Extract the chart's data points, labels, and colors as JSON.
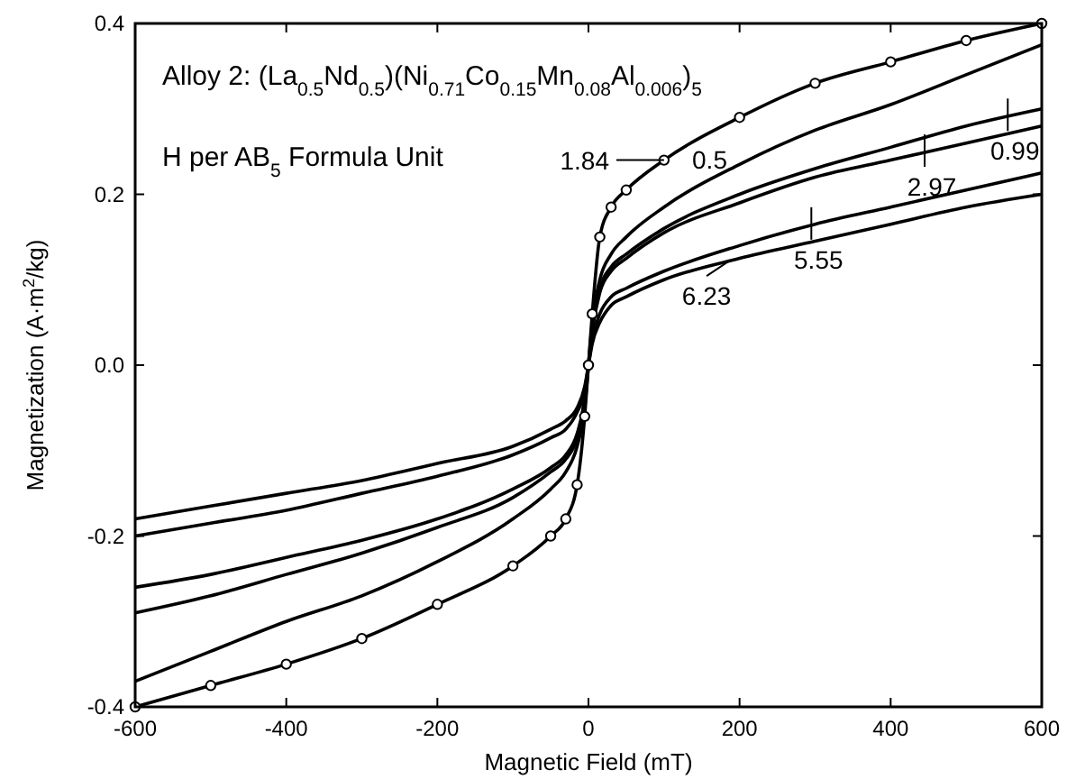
{
  "chart_data": {
    "type": "line",
    "title": "Alloy 2: (La$_{0.5}$Nd$_{0.5}$)(Ni$_{0.71}$Co$_{0.15}$Mn$_{0.08}$Al$_{0.006}$)$_{5}$",
    "legend_title": "H per AB$_{5}$ Formula Unit",
    "xlabel": "Magnetic Field (mT)",
    "ylabel": "Magnetization (A·m$^{2}$/kg)",
    "x": [
      -600,
      -500,
      -400,
      -300,
      -200,
      -100,
      -50,
      -30,
      -15,
      -5,
      0,
      5,
      15,
      30,
      50,
      100,
      200,
      300,
      400,
      500,
      600
    ],
    "xlim": [
      -600,
      600
    ],
    "xticks": [
      -600,
      -400,
      -200,
      0,
      200,
      400,
      600
    ],
    "ylim": [
      -0.4,
      0.4
    ],
    "yticks": [
      {
        "value": -0.4,
        "label": "-0.4"
      },
      {
        "value": -0.2,
        "label": "-0.2"
      },
      {
        "value": 0,
        "label": "0.0"
      },
      {
        "value": 0.2,
        "label": "0.2"
      },
      {
        "value": 0.4,
        "label": "0.4"
      }
    ],
    "grid": false,
    "legend": "top right",
    "line_style": "solid",
    "series": [
      {
        "name": "1.84",
        "color": "#000000",
        "marker": "circle",
        "values": [
          -0.4,
          -0.375,
          -0.35,
          -0.32,
          -0.28,
          -0.235,
          -0.2,
          -0.18,
          -0.14,
          -0.06,
          0,
          0.06,
          0.15,
          0.185,
          0.205,
          0.24,
          0.29,
          0.33,
          0.355,
          0.38,
          0.4
        ]
      },
      {
        "name": "0.5",
        "color": "#000000",
        "marker": "none",
        "values": [
          -0.37,
          -0.335,
          -0.3,
          -0.27,
          -0.23,
          -0.18,
          -0.145,
          -0.125,
          -0.095,
          -0.05,
          0,
          0.05,
          0.1,
          0.13,
          0.15,
          0.185,
          0.235,
          0.275,
          0.305,
          0.34,
          0.375
        ]
      },
      {
        "name": "0.99",
        "color": "#000000",
        "marker": "none",
        "values": [
          -0.29,
          -0.27,
          -0.245,
          -0.22,
          -0.19,
          -0.155,
          -0.125,
          -0.11,
          -0.085,
          -0.04,
          0,
          0.04,
          0.09,
          0.115,
          0.13,
          0.16,
          0.2,
          0.23,
          0.255,
          0.28,
          0.3
        ]
      },
      {
        "name": "2.97",
        "color": "#000000",
        "marker": "none",
        "values": [
          -0.26,
          -0.245,
          -0.225,
          -0.205,
          -0.18,
          -0.145,
          -0.12,
          -0.105,
          -0.08,
          -0.04,
          0,
          0.04,
          0.085,
          0.11,
          0.125,
          0.155,
          0.19,
          0.22,
          0.24,
          0.26,
          0.28
        ]
      },
      {
        "name": "5.55",
        "color": "#000000",
        "marker": "none",
        "values": [
          -0.2,
          -0.185,
          -0.17,
          -0.15,
          -0.13,
          -0.105,
          -0.085,
          -0.075,
          -0.055,
          -0.03,
          0,
          0.03,
          0.06,
          0.08,
          0.09,
          0.11,
          0.14,
          0.165,
          0.185,
          0.205,
          0.225
        ]
      },
      {
        "name": "6.23",
        "color": "#000000",
        "marker": "none",
        "values": [
          -0.18,
          -0.165,
          -0.15,
          -0.135,
          -0.115,
          -0.095,
          -0.075,
          -0.065,
          -0.05,
          -0.025,
          0,
          0.025,
          0.05,
          0.07,
          0.08,
          0.1,
          0.125,
          0.145,
          0.165,
          0.185,
          0.2
        ]
      }
    ]
  }
}
